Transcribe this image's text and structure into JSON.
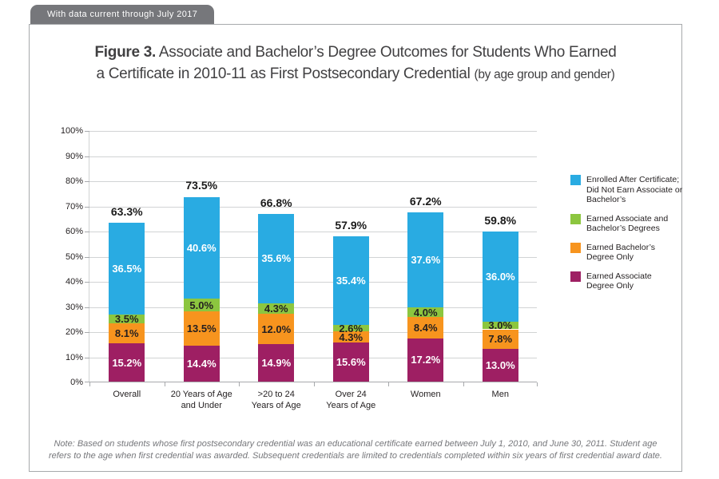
{
  "banner": {
    "text": "With data current through July 2017"
  },
  "title": {
    "figure_label": "Figure 3.",
    "main": "Associate and Bachelor’s Degree Outcomes for Students Who Earned a Certificate in 2010-11 as First Postsecondary Credential",
    "paren": "(by age group and gender)"
  },
  "chart_data": {
    "type": "bar",
    "stacked": true,
    "categories": [
      "Overall",
      "20 Years of Age\nand Under",
      ">20 to 24\nYears of Age",
      "Over 24\nYears of Age",
      "Women",
      "Men"
    ],
    "series": [
      {
        "name": "Earned Associate Degree Only",
        "color": "#9E1F63",
        "label_color": "#FFFFFF",
        "values": [
          15.2,
          14.4,
          14.9,
          15.6,
          17.2,
          13.0
        ]
      },
      {
        "name": "Earned Bachelor's Degree Only",
        "color": "#F7941E",
        "label_color": "#231F20",
        "values": [
          8.1,
          13.5,
          12.0,
          4.3,
          8.4,
          7.8
        ]
      },
      {
        "name": "Earned Associate and Bachelor's Degrees",
        "color": "#8CC63F",
        "label_color": "#231F20",
        "values": [
          3.5,
          5.0,
          4.3,
          2.6,
          4.0,
          3.0
        ]
      },
      {
        "name": "Enrolled After Certificate; Did Not Earn Associate or Bachelor's",
        "color": "#29ABE2",
        "label_color": "#FFFFFF",
        "values": [
          36.5,
          40.6,
          35.6,
          35.4,
          37.6,
          36.0
        ]
      }
    ],
    "totals": [
      "63.3%",
      "73.5%",
      "66.8%",
      "57.9%",
      "67.2%",
      "59.8%"
    ],
    "ylim": [
      0,
      100
    ],
    "ytick_step": 10,
    "ytick_suffix": "%",
    "grid": true,
    "legend_position": "right"
  },
  "legend": {
    "items": [
      {
        "label": "Enrolled After Certificate;\nDid Not Earn Associate or\nBachelor’s",
        "color": "#29ABE2"
      },
      {
        "label": "Earned Associate and\nBachelor’s Degrees",
        "color": "#8CC63F"
      },
      {
        "label": "Earned Bachelor’s\nDegree Only",
        "color": "#F7941E"
      },
      {
        "label": "Earned Associate\nDegree Only",
        "color": "#9E1F63"
      }
    ]
  },
  "note": "Note: Based on students whose first postsecondary credential was an educational certificate earned between July 1, 2010, and June 30, 2011. Student age refers to the age when first credential was awarded. Subsequent credentials are limited to credentials completed within six years of first credential award date.",
  "colors": {
    "blue": "#29ABE2",
    "green": "#8CC63F",
    "orange": "#F7941E",
    "magenta": "#9E1F63",
    "banner_bg": "#76777B",
    "grid": "#D1D3D4",
    "axis": "#A7A9AC",
    "title_text": "#414042",
    "note_text": "#76777B"
  }
}
